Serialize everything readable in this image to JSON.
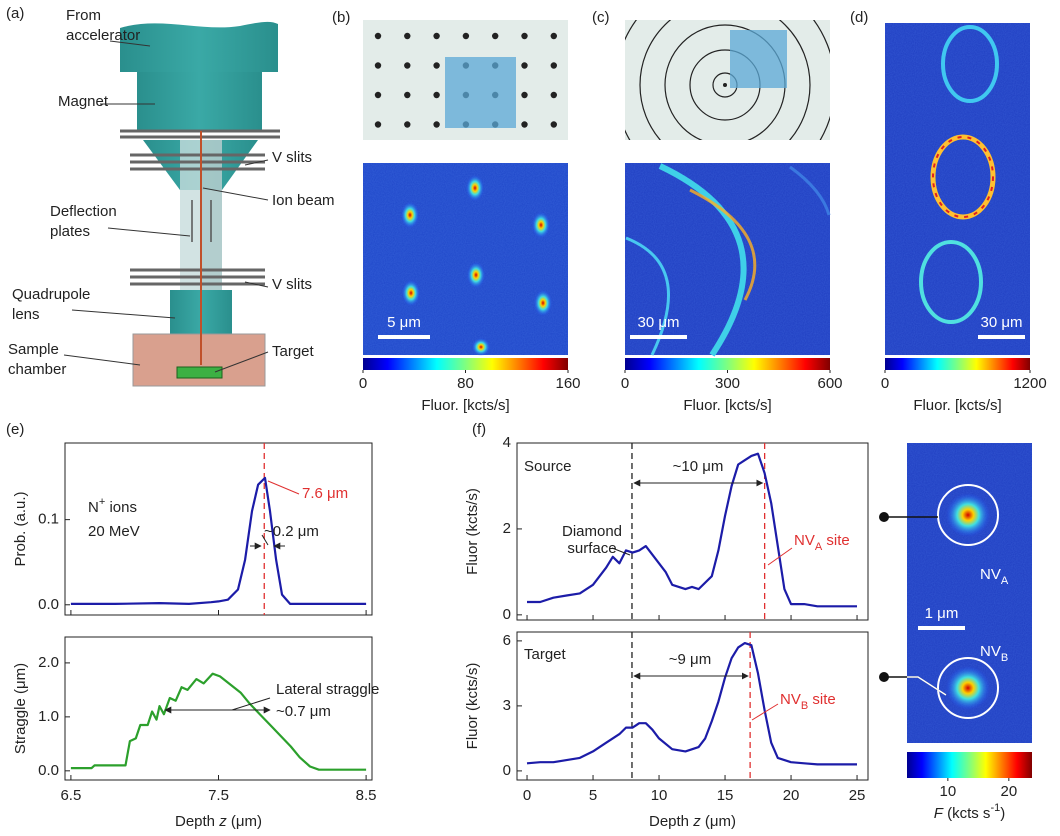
{
  "panel_labels": [
    "(a)",
    "(b)",
    "(c)",
    "(d)",
    "(e)",
    "(f)"
  ],
  "diagram": {
    "labels": {
      "accelerator": [
        "From",
        "accelerator"
      ],
      "magnet": "Magnet",
      "v_slits_top": "V slits",
      "ion_beam": "Ion beam",
      "deflection": [
        "Deflection",
        "plates"
      ],
      "v_slits_bottom": "V slits",
      "quadrupole": [
        "Quadrupole",
        "lens"
      ],
      "chamber": [
        "Sample",
        "chamber"
      ],
      "target": "Target"
    }
  },
  "images": [
    {
      "scale_bar": "5 μm",
      "colorbar": {
        "lim": [
          0,
          160
        ],
        "ticks": [
          0,
          80,
          160
        ],
        "label": "Fluor. [kcts/s]"
      }
    },
    {
      "scale_bar": "30 μm",
      "colorbar": {
        "lim": [
          0,
          600
        ],
        "ticks": [
          0,
          300,
          600
        ],
        "label": "Fluor. [kcts/s]"
      }
    },
    {
      "scale_bar": "30 μm",
      "colorbar": {
        "lim": [
          0,
          1200
        ],
        "ticks": [
          0,
          1200
        ],
        "label": "Fluor. [kcts/s]"
      }
    },
    {
      "scale_bar": "1 μm",
      "labels": [
        [
          "NV",
          {
            "text": "A",
            "style": "sub"
          }
        ],
        [
          "NV",
          {
            "text": "B",
            "style": "sub"
          }
        ]
      ],
      "colorbar": {
        "lim": [
          3.3,
          23.8
        ],
        "ticks": [
          10,
          20
        ],
        "label": [
          {
            "text": "F",
            "style": "i"
          },
          " (kcts s",
          {
            "text": "-1",
            "style": "sup"
          },
          ")"
        ]
      }
    }
  ],
  "chart_data": [
    {
      "type": "line",
      "ylabel": "Prob. (a.u.)",
      "color": "#1c1ca8",
      "x": [
        6.5,
        6.8,
        7.1,
        7.3,
        7.45,
        7.5,
        7.564,
        7.632,
        7.68,
        7.727,
        7.768,
        7.815,
        7.849,
        7.89,
        7.93,
        7.985,
        8.2,
        8.5
      ],
      "values": [
        0.001,
        0.001,
        0.002,
        0.001,
        0.003,
        0.004,
        0.006,
        0.018,
        0.053,
        0.11,
        0.141,
        0.149,
        0.11,
        0.053,
        0.012,
        0.001,
        0.001,
        0.001
      ],
      "xlim": [
        6.46,
        8.54
      ],
      "xticks": [
        6.5,
        7.5,
        8.5
      ],
      "xtick_labels": false,
      "ylim": [
        -0.012,
        0.19
      ],
      "yticks": [
        {
          "value": 0,
          "label": "0.0"
        },
        0.1
      ],
      "vlines": [
        {
          "x": 7.81,
          "color": "#e03030"
        }
      ],
      "annotations": [
        {
          "text": [
            "N",
            {
              "text": "+",
              "style": "sup"
            },
            " ions"
          ]
        },
        {
          "text": "20 MeV"
        },
        {
          "text": "7.6 μm",
          "color": "#e03030"
        },
        {
          "text": "~0.2 μm"
        }
      ]
    },
    {
      "type": "line",
      "ylabel": "Straggle (μm)",
      "xlabel": [
        "Depth ",
        {
          "text": "z",
          "style": "i"
        },
        " (μm)"
      ],
      "color": "#2ca02c",
      "x": [
        6.5,
        6.64,
        6.66,
        6.87,
        6.9,
        6.94,
        6.97,
        7.02,
        7.05,
        7.08,
        7.1,
        7.13,
        7.17,
        7.21,
        7.25,
        7.29,
        7.35,
        7.4,
        7.46,
        7.51,
        7.58,
        7.65,
        7.71,
        7.78,
        7.85,
        7.92,
        7.99,
        8.05,
        8.12,
        8.18,
        8.5
      ],
      "values": [
        0.05,
        0.05,
        0.1,
        0.1,
        0.55,
        0.6,
        0.85,
        0.85,
        1.1,
        0.95,
        1.2,
        1.05,
        1.35,
        1.3,
        1.55,
        1.5,
        1.7,
        1.62,
        1.8,
        1.75,
        1.6,
        1.45,
        1.25,
        1.05,
        0.85,
        0.65,
        0.45,
        0.25,
        0.08,
        0.02,
        0.02
      ],
      "xlim": [
        6.46,
        8.54
      ],
      "xticks": [
        6.5,
        7.5,
        8.5
      ],
      "xtick_labels": true,
      "ylim": [
        -0.17,
        2.48
      ],
      "yticks": [
        {
          "value": 0,
          "label": "0.0"
        },
        {
          "value": 1,
          "label": "1.0"
        },
        {
          "value": 2,
          "label": "2.0"
        }
      ],
      "vlines": [],
      "annotations": [
        {
          "text": "Lateral straggle"
        },
        {
          "text": "~0.7 μm"
        }
      ]
    },
    {
      "type": "line",
      "ylabel": "Fluor (kcts/s)",
      "color": "#1c1ca8",
      "x": [
        0,
        1,
        2,
        3,
        4,
        5,
        6,
        6.5,
        7,
        7.5,
        8,
        8.5,
        9,
        9.5,
        10,
        10.5,
        11,
        12,
        12.5,
        13,
        14,
        14.5,
        15,
        15.5,
        16,
        16.5,
        17,
        17.5,
        18,
        18.5,
        19,
        19.5,
        20,
        21,
        22,
        23,
        24,
        25
      ],
      "values": [
        0.3,
        0.3,
        0.4,
        0.45,
        0.5,
        0.7,
        1.1,
        1.35,
        1.2,
        1.5,
        1.45,
        1.5,
        1.6,
        1.4,
        1.2,
        1.0,
        0.7,
        0.6,
        0.65,
        0.6,
        0.9,
        1.5,
        2.3,
        3.0,
        3.5,
        3.6,
        3.7,
        3.75,
        3.3,
        2.6,
        1.6,
        0.6,
        0.25,
        0.25,
        0.2,
        0.2,
        0.2,
        0.2
      ],
      "xlim": [
        -0.76,
        25.83
      ],
      "xticks": [
        0,
        5,
        10,
        15,
        20,
        25
      ],
      "xtick_labels": false,
      "ylim": [
        -0.12,
        4.0
      ],
      "yticks": [
        0,
        2,
        4
      ],
      "vlines": [
        {
          "x": 7.95,
          "color": "#222222"
        },
        {
          "x": 18.0,
          "color": "#e03030"
        }
      ],
      "annotations": [
        {
          "text": "Source"
        },
        {
          "text": "Diamond"
        },
        {
          "text": "surface"
        },
        {
          "text": "~10 μm"
        },
        {
          "text": [
            "NV",
            {
              "text": "A",
              "style": "sub"
            },
            " site"
          ],
          "color": "#e03030"
        }
      ]
    },
    {
      "type": "line",
      "ylabel": "Fluor (kcts/s)",
      "xlabel": [
        "Depth ",
        {
          "text": "z",
          "style": "i"
        },
        " (μm)"
      ],
      "color": "#1c1ca8",
      "x": [
        0,
        1,
        2,
        3,
        4,
        5,
        6,
        7,
        7.5,
        8,
        8.5,
        9,
        9.5,
        10,
        11,
        12,
        13,
        13.5,
        14,
        14.5,
        15,
        15.5,
        16,
        16.5,
        17,
        17.5,
        18,
        18.5,
        19,
        20,
        21,
        22,
        25
      ],
      "values": [
        0.35,
        0.4,
        0.4,
        0.5,
        0.6,
        0.9,
        1.3,
        1.7,
        2.0,
        2.0,
        2.2,
        2.2,
        1.9,
        1.5,
        1.0,
        0.9,
        1.1,
        1.5,
        2.3,
        3.2,
        4.3,
        5.2,
        5.7,
        5.9,
        5.8,
        4.5,
        2.8,
        1.3,
        0.6,
        0.4,
        0.35,
        0.3,
        0.3
      ],
      "xlim": [
        -0.76,
        25.83
      ],
      "xticks": [
        0,
        5,
        10,
        15,
        20,
        25
      ],
      "xtick_labels": true,
      "ylim": [
        -0.42,
        6.41
      ],
      "yticks": [
        0,
        3,
        6
      ],
      "vlines": [
        {
          "x": 7.95,
          "color": "#222222"
        },
        {
          "x": 16.9,
          "color": "#e03030"
        }
      ],
      "annotations": [
        {
          "text": "Target"
        },
        {
          "text": "~9 μm"
        },
        {
          "text": [
            "NV",
            {
              "text": "B",
              "style": "sub"
            },
            " site"
          ],
          "color": "#e03030"
        }
      ]
    }
  ]
}
